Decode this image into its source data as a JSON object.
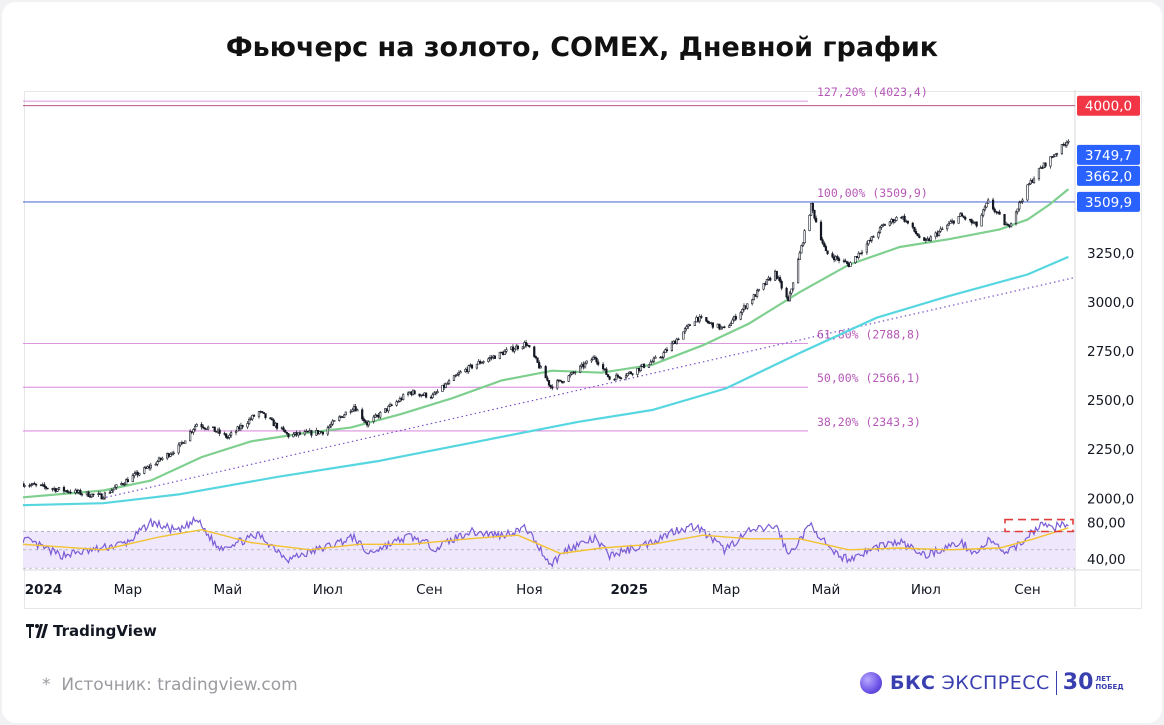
{
  "header": {
    "title": "Фьючерс на золото, COMEX, Дневной график"
  },
  "footer": {
    "tradingview_logo": "TradingView",
    "source_star": "*",
    "source": "Источник: tradingview.com",
    "brand_main": "БКС",
    "brand_sub": "ЭКСПРЕСС",
    "brand_years": "30",
    "brand_years_top": "ЛЕТ",
    "brand_years_bottom": "ПОБЕД"
  },
  "colors": {
    "candles": "#131722",
    "ma_fast": "#7fcf8f",
    "ma_slow": "#56d6e0",
    "trendline": "#7b52c9",
    "fib_line": "#d173d6",
    "fib_text": "#b657b8",
    "rsi_line": "#7a5bd6",
    "rsi_ma": "#f2c230",
    "rsi_band": "#efe7fb",
    "label_red": "#f23645",
    "label_blue": "#2962ff"
  },
  "chart_data": {
    "type": "candlestick",
    "title": "Фьючерс на золото, COMEX, Дневной график",
    "yaxis": {
      "range": [
        1915,
        4080
      ],
      "ticks": [
        "4000,0",
        "3250,0",
        "3000,0",
        "2750,0",
        "2500,0",
        "2250,0",
        "2000,0"
      ],
      "tick_values": [
        4000,
        3250,
        3000,
        2750,
        2500,
        2250,
        2000
      ]
    },
    "xaxis": {
      "labels": [
        "2024",
        "Мар",
        "Май",
        "Июл",
        "Сен",
        "Ноя",
        "2025",
        "Мар",
        "Май",
        "Июл",
        "Сен"
      ],
      "label_dates": [
        "2024-01-01",
        "2024-03-01",
        "2024-05-01",
        "2024-07-01",
        "2024-09-01",
        "2024-11-01",
        "2025-01-01",
        "2025-03-01",
        "2025-05-01",
        "2025-07-01",
        "2025-09-01"
      ],
      "range": [
        "2023-12-28",
        "2025-09-30"
      ]
    },
    "price_close": [
      [
        "2023-12-28",
        2075
      ],
      [
        "2024-01-15",
        2050
      ],
      [
        "2024-02-14",
        2010
      ],
      [
        "2024-03-01",
        2095
      ],
      [
        "2024-03-15",
        2165
      ],
      [
        "2024-04-01",
        2260
      ],
      [
        "2024-04-12",
        2380
      ],
      [
        "2024-04-22",
        2350
      ],
      [
        "2024-05-01",
        2310
      ],
      [
        "2024-05-20",
        2440
      ],
      [
        "2024-06-07",
        2320
      ],
      [
        "2024-06-28",
        2340
      ],
      [
        "2024-07-17",
        2470
      ],
      [
        "2024-07-25",
        2380
      ],
      [
        "2024-08-20",
        2540
      ],
      [
        "2024-09-03",
        2520
      ],
      [
        "2024-09-20",
        2640
      ],
      [
        "2024-10-01",
        2690
      ],
      [
        "2024-10-30",
        2790
      ],
      [
        "2024-11-14",
        2570
      ],
      [
        "2024-11-25",
        2620
      ],
      [
        "2024-12-11",
        2720
      ],
      [
        "2024-12-20",
        2610
      ],
      [
        "2025-01-02",
        2640
      ],
      [
        "2025-01-20",
        2720
      ],
      [
        "2025-02-11",
        2920
      ],
      [
        "2025-02-28",
        2860
      ],
      [
        "2025-03-14",
        2990
      ],
      [
        "2025-03-31",
        3150
      ],
      [
        "2025-04-08",
        3000
      ],
      [
        "2025-04-22",
        3490
      ],
      [
        "2025-05-01",
        3250
      ],
      [
        "2025-05-15",
        3190
      ],
      [
        "2025-06-05",
        3390
      ],
      [
        "2025-06-16",
        3440
      ],
      [
        "2025-06-30",
        3300
      ],
      [
        "2025-07-22",
        3440
      ],
      [
        "2025-08-01",
        3390
      ],
      [
        "2025-08-08",
        3510
      ],
      [
        "2025-08-20",
        3380
      ],
      [
        "2025-09-02",
        3600
      ],
      [
        "2025-09-09",
        3680
      ],
      [
        "2025-09-16",
        3740
      ],
      [
        "2025-09-22",
        3790
      ],
      [
        "2025-09-26",
        3830
      ]
    ],
    "ma_fast": [
      [
        "2023-12-28",
        2005
      ],
      [
        "2024-02-15",
        2040
      ],
      [
        "2024-03-15",
        2090
      ],
      [
        "2024-04-15",
        2210
      ],
      [
        "2024-05-15",
        2290
      ],
      [
        "2024-06-15",
        2330
      ],
      [
        "2024-07-15",
        2360
      ],
      [
        "2024-08-15",
        2430
      ],
      [
        "2024-09-15",
        2510
      ],
      [
        "2024-10-15",
        2600
      ],
      [
        "2024-11-15",
        2650
      ],
      [
        "2024-12-15",
        2640
      ],
      [
        "2025-01-15",
        2680
      ],
      [
        "2025-02-15",
        2780
      ],
      [
        "2025-03-15",
        2890
      ],
      [
        "2025-04-15",
        3050
      ],
      [
        "2025-05-15",
        3190
      ],
      [
        "2025-06-15",
        3280
      ],
      [
        "2025-07-15",
        3320
      ],
      [
        "2025-08-15",
        3370
      ],
      [
        "2025-09-01",
        3420
      ],
      [
        "2025-09-15",
        3500
      ],
      [
        "2025-09-26",
        3575
      ]
    ],
    "ma_slow": [
      [
        "2023-12-28",
        1965
      ],
      [
        "2024-02-15",
        1975
      ],
      [
        "2024-04-01",
        2020
      ],
      [
        "2024-06-01",
        2110
      ],
      [
        "2024-08-01",
        2190
      ],
      [
        "2024-10-01",
        2290
      ],
      [
        "2024-12-01",
        2390
      ],
      [
        "2025-01-15",
        2450
      ],
      [
        "2025-03-01",
        2560
      ],
      [
        "2025-04-15",
        2740
      ],
      [
        "2025-06-01",
        2920
      ],
      [
        "2025-07-15",
        3030
      ],
      [
        "2025-09-01",
        3140
      ],
      [
        "2025-09-26",
        3230
      ]
    ],
    "trendline": {
      "from": [
        "2024-02-14",
        2000
      ],
      "to": [
        "2025-09-30",
        3125
      ]
    },
    "fibonacci": [
      {
        "label": "127,20% (4023,4)",
        "value": 4023.4
      },
      {
        "label": "100,00% (3509,9)",
        "value": 3509.9
      },
      {
        "label": "61,80% (2788,8)",
        "value": 2788.8
      },
      {
        "label": "50,00% (2566,1)",
        "value": 2566.1
      },
      {
        "label": "38,20% (2343,3)",
        "value": 2343.3
      }
    ],
    "horizontal_levels": [
      4000.0,
      3509.9
    ],
    "price_labels": [
      {
        "text": "4000,0",
        "value": 4000.0,
        "color": "red"
      },
      {
        "text": "3749,7",
        "value": 3749.7,
        "color": "blue"
      },
      {
        "text": "3662,0",
        "value": 3662.0,
        "color": "blue"
      },
      {
        "text": "3509,9",
        "value": 3509.9,
        "color": "blue"
      }
    ],
    "rsi": {
      "range": [
        28,
        88
      ],
      "ticks": [
        "80,00",
        "40,00"
      ],
      "tick_values": [
        80,
        40
      ],
      "band": [
        30,
        70
      ],
      "values": [
        [
          "2023-12-28",
          62
        ],
        [
          "2024-01-20",
          44
        ],
        [
          "2024-02-10",
          50
        ],
        [
          "2024-03-01",
          58
        ],
        [
          "2024-03-15",
          80
        ],
        [
          "2024-04-01",
          70
        ],
        [
          "2024-04-12",
          83
        ],
        [
          "2024-04-25",
          52
        ],
        [
          "2024-05-10",
          60
        ],
        [
          "2024-05-20",
          66
        ],
        [
          "2024-06-07",
          40
        ],
        [
          "2024-06-28",
          52
        ],
        [
          "2024-07-17",
          64
        ],
        [
          "2024-07-25",
          46
        ],
        [
          "2024-08-20",
          65
        ],
        [
          "2024-09-05",
          52
        ],
        [
          "2024-09-25",
          70
        ],
        [
          "2024-10-15",
          66
        ],
        [
          "2024-10-30",
          74
        ],
        [
          "2024-11-14",
          34
        ],
        [
          "2024-11-25",
          52
        ],
        [
          "2024-12-11",
          62
        ],
        [
          "2024-12-20",
          44
        ],
        [
          "2025-01-10",
          55
        ],
        [
          "2025-01-30",
          72
        ],
        [
          "2025-02-11",
          76
        ],
        [
          "2025-02-28",
          50
        ],
        [
          "2025-03-15",
          70
        ],
        [
          "2025-04-01",
          76
        ],
        [
          "2025-04-08",
          44
        ],
        [
          "2025-04-22",
          78
        ],
        [
          "2025-05-05",
          46
        ],
        [
          "2025-05-15",
          40
        ],
        [
          "2025-06-05",
          56
        ],
        [
          "2025-06-16",
          58
        ],
        [
          "2025-06-30",
          44
        ],
        [
          "2025-07-22",
          58
        ],
        [
          "2025-08-01",
          46
        ],
        [
          "2025-08-08",
          60
        ],
        [
          "2025-08-20",
          46
        ],
        [
          "2025-09-02",
          66
        ],
        [
          "2025-09-09",
          78
        ],
        [
          "2025-09-16",
          74
        ],
        [
          "2025-09-26",
          80
        ]
      ],
      "ma": [
        [
          "2023-12-28",
          56
        ],
        [
          "2024-02-15",
          50
        ],
        [
          "2024-03-20",
          64
        ],
        [
          "2024-04-15",
          72
        ],
        [
          "2024-05-15",
          58
        ],
        [
          "2024-06-20",
          50
        ],
        [
          "2024-07-20",
          56
        ],
        [
          "2024-08-20",
          56
        ],
        [
          "2024-09-25",
          62
        ],
        [
          "2024-10-25",
          66
        ],
        [
          "2024-11-20",
          46
        ],
        [
          "2024-12-15",
          52
        ],
        [
          "2025-01-15",
          56
        ],
        [
          "2025-02-15",
          66
        ],
        [
          "2025-03-15",
          62
        ],
        [
          "2025-04-15",
          62
        ],
        [
          "2025-05-15",
          50
        ],
        [
          "2025-06-15",
          52
        ],
        [
          "2025-07-15",
          50
        ],
        [
          "2025-08-15",
          52
        ],
        [
          "2025-09-05",
          62
        ],
        [
          "2025-09-26",
          74
        ]
      ]
    }
  }
}
